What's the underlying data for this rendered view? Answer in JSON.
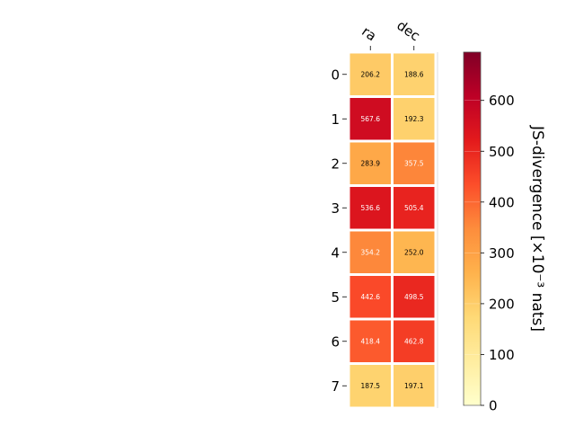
{
  "chart_data": {
    "type": "heatmap",
    "columns": [
      "ra",
      "dec"
    ],
    "rows": [
      "0",
      "1",
      "2",
      "3",
      "4",
      "5",
      "6",
      "7"
    ],
    "values": [
      [
        206.2,
        188.6
      ],
      [
        567.6,
        192.3
      ],
      [
        283.9,
        357.5
      ],
      [
        536.6,
        505.4
      ],
      [
        354.2,
        252.0
      ],
      [
        442.6,
        498.5
      ],
      [
        418.4,
        462.8
      ],
      [
        187.5,
        197.1
      ]
    ],
    "value_labels": [
      [
        "206.2",
        "188.6"
      ],
      [
        "567.6",
        "192.3"
      ],
      [
        "283.9",
        "357.5"
      ],
      [
        "536.6",
        "505.4"
      ],
      [
        "354.2",
        "252.0"
      ],
      [
        "442.6",
        "498.5"
      ],
      [
        "418.4",
        "462.8"
      ],
      [
        "187.5",
        "197.1"
      ]
    ],
    "colorbar": {
      "label": "JS-divergence [×10⁻³ nats]",
      "range": [
        0,
        695
      ],
      "ticks": [
        "0",
        "100",
        "200",
        "300",
        "400",
        "500",
        "600"
      ],
      "colormap": "YlOrRd"
    }
  }
}
